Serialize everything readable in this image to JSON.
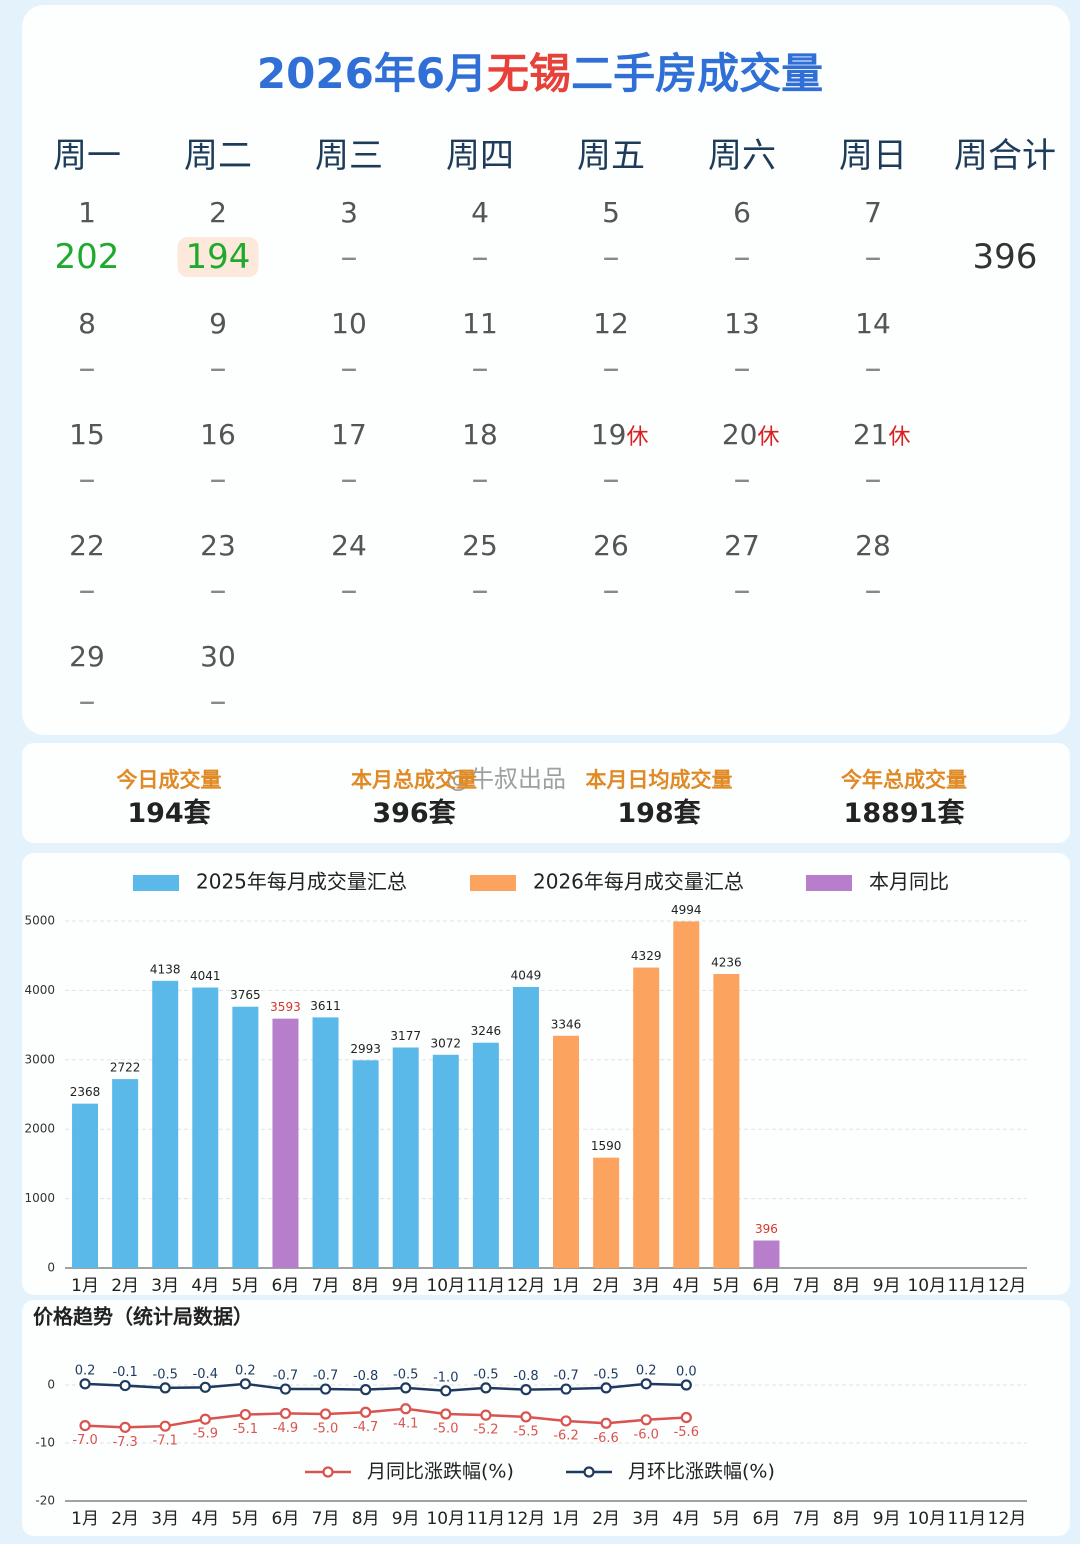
{
  "title": [
    "2026年6月",
    "无锡",
    "二手房成交量"
  ],
  "calendar": {
    "headers": [
      "周一",
      "周二",
      "周三",
      "周四",
      "周五",
      "周六",
      "周日",
      "周合计"
    ],
    "weeks": [
      {
        "days": [
          {
            "day": 1,
            "value": 202
          },
          {
            "day": 2,
            "value": 194
          },
          {
            "day": 3,
            "value": "–"
          },
          {
            "day": 4,
            "value": "–"
          },
          {
            "day": 5,
            "value": "–"
          },
          {
            "day": 6,
            "value": "–"
          },
          {
            "day": 7,
            "value": "–"
          }
        ],
        "total": 396
      },
      {
        "days": [
          {
            "day": 8,
            "value": "–"
          },
          {
            "day": 9,
            "value": "–"
          },
          {
            "day": 10,
            "value": "–"
          },
          {
            "day": 11,
            "value": "–"
          },
          {
            "day": 12,
            "value": "–"
          },
          {
            "day": 13,
            "value": "–"
          },
          {
            "day": 14,
            "value": "–"
          }
        ]
      },
      {
        "days": [
          {
            "day": 15,
            "value": "–"
          },
          {
            "day": 16,
            "value": "–"
          },
          {
            "day": 17,
            "value": "–"
          },
          {
            "day": 18,
            "value": "–"
          },
          {
            "day": 19,
            "value": "–",
            "note": "休"
          },
          {
            "day": 20,
            "value": "–",
            "note": "休"
          },
          {
            "day": 21,
            "value": "–",
            "note": "休"
          }
        ]
      },
      {
        "days": [
          {
            "day": 22,
            "value": "–"
          },
          {
            "day": 23,
            "value": "–"
          },
          {
            "day": 24,
            "value": "–"
          },
          {
            "day": 25,
            "value": "–"
          },
          {
            "day": 26,
            "value": "–"
          },
          {
            "day": 27,
            "value": "–"
          },
          {
            "day": 28,
            "value": "–"
          }
        ]
      },
      {
        "days": [
          {
            "day": 29,
            "value": "–"
          },
          {
            "day": 30,
            "value": "–"
          }
        ]
      }
    ]
  },
  "stats": [
    {
      "label": "今日成交量",
      "value": "194套"
    },
    {
      "label": "本月总成交量",
      "value": "396套"
    },
    {
      "label": "本月日均成交量",
      "value": "198套"
    },
    {
      "label": "今年总成交量",
      "value": "18891套"
    }
  ],
  "watermark": "@牛叔出品",
  "chart_data": [
    {
      "type": "bar",
      "categories": [
        "1月",
        "2月",
        "3月",
        "4月",
        "5月",
        "6月",
        "7月",
        "8月",
        "9月",
        "10月",
        "11月",
        "12月",
        "1月",
        "2月",
        "3月",
        "4月",
        "5月",
        "6月",
        "7月",
        "8月",
        "9月",
        "10月",
        "11月",
        "12月"
      ],
      "series": [
        {
          "name": "2025年每月成交量汇总",
          "color": "#5bb9e9",
          "values": [
            2368,
            2722,
            4138,
            4041,
            3765,
            null,
            3611,
            2993,
            3177,
            3072,
            3246,
            4049,
            null,
            null,
            null,
            null,
            null,
            null,
            null,
            null,
            null,
            null,
            null,
            null
          ]
        },
        {
          "name": "2026年每月成交量汇总",
          "color": "#fba35f",
          "values": [
            null,
            null,
            null,
            null,
            null,
            null,
            null,
            null,
            null,
            null,
            null,
            null,
            3346,
            1590,
            4329,
            4994,
            4236,
            null,
            null,
            null,
            null,
            null,
            null,
            null
          ]
        },
        {
          "name": "本月同比",
          "color": "#b77fcb",
          "label_color": "#d9342b",
          "values": [
            null,
            null,
            null,
            null,
            null,
            3593,
            null,
            null,
            null,
            null,
            null,
            null,
            null,
            null,
            null,
            null,
            null,
            396,
            null,
            null,
            null,
            null,
            null,
            null
          ]
        }
      ],
      "ylim": [
        0,
        5800
      ],
      "yticks": [
        0,
        1000,
        2000,
        3000,
        4000,
        5000
      ],
      "grid": true
    },
    {
      "type": "line",
      "title": "价格趋势（统计局数据）",
      "categories": [
        "1月",
        "2月",
        "3月",
        "4月",
        "5月",
        "6月",
        "7月",
        "8月",
        "9月",
        "10月",
        "11月",
        "12月",
        "1月",
        "2月",
        "3月",
        "4月",
        "5月",
        "6月",
        "7月",
        "8月",
        "9月",
        "10月",
        "11月",
        "12月"
      ],
      "series": [
        {
          "name": "月同比涨跌幅(%)",
          "color": "#d9534f",
          "label_pos": "below",
          "values": [
            -7.0,
            -7.3,
            -7.1,
            -5.9,
            -5.1,
            -4.9,
            -5.0,
            -4.7,
            -4.1,
            -5.0,
            -5.2,
            -5.5,
            -6.2,
            -6.6,
            -6.0,
            -5.6,
            null,
            null,
            null,
            null,
            null,
            null,
            null,
            null
          ],
          "value_labels": [
            "-7.0",
            "-7.3",
            "-7.1",
            "-5.9",
            "-5.1",
            "-4.9",
            "-5.0",
            "-4.7",
            "-4.1",
            "-5.0",
            "-5.2",
            "-5.5",
            "-6.2",
            "-6.6",
            "-6.0",
            "-5.6",
            null,
            null,
            null,
            null,
            null,
            null,
            null,
            null
          ]
        },
        {
          "name": "月环比涨跌幅(%)",
          "color": "#1f3a5f",
          "label_pos": "above",
          "values": [
            0.2,
            -0.1,
            -0.5,
            -0.4,
            0.2,
            -0.7,
            -0.7,
            -0.8,
            -0.5,
            -1.0,
            -0.5,
            -0.8,
            -0.7,
            -0.5,
            0.2,
            0.0,
            null,
            null,
            null,
            null,
            null,
            null,
            null,
            null
          ],
          "value_labels": [
            "0.2",
            "-0.1",
            "-0.5",
            "-0.4",
            "0.2",
            "-0.7",
            "-0.7",
            "-0.8",
            "-0.5",
            "-1.0",
            "-0.5",
            "-0.8",
            "-0.7",
            "-0.5",
            "0.2",
            "0.0",
            null,
            null,
            null,
            null,
            null,
            null,
            null,
            null
          ]
        }
      ],
      "ylim": [
        -20,
        8
      ],
      "yticks": [
        -20,
        -10,
        0
      ],
      "grid": true
    }
  ]
}
